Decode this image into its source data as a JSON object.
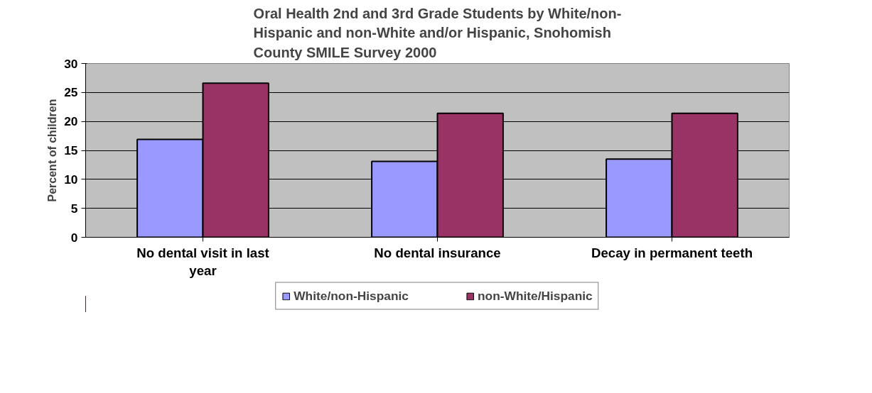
{
  "chart_data": {
    "type": "bar",
    "title": "Oral Health 2nd and 3rd Grade Students by White/non-Hispanic and non-White and/or Hispanic, Snohomish County SMILE Survey 2000",
    "ylabel": "Percent of children",
    "categories": [
      "No dental visit in last year",
      "No dental insurance",
      "Decay in permanent teeth"
    ],
    "series": [
      {
        "name": "White/non-Hispanic",
        "color": "#9999ff",
        "values": [
          16.9,
          13.1,
          13.5
        ]
      },
      {
        "name": "non-White/Hispanic",
        "color": "#993366",
        "values": [
          26.6,
          21.4,
          21.4
        ]
      }
    ],
    "ylim": [
      0,
      30
    ],
    "yticks": [
      0,
      5,
      10,
      15,
      20,
      25,
      30
    ],
    "grid": "y",
    "legend": "bottom"
  }
}
